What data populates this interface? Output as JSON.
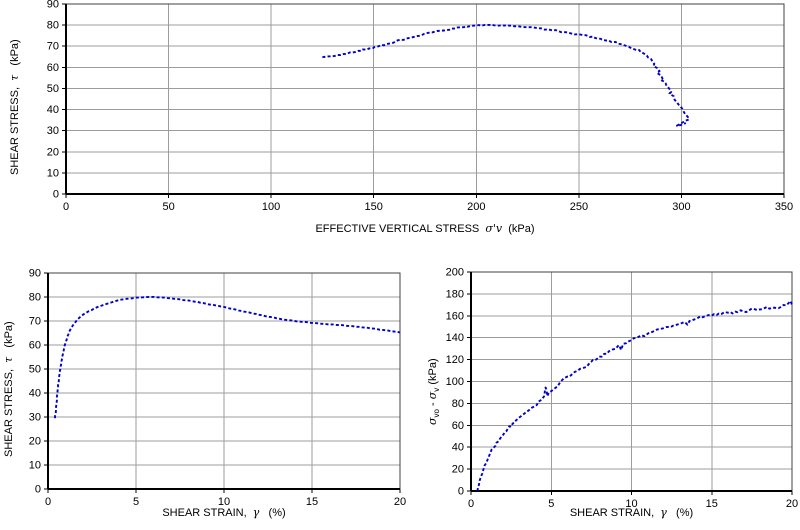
{
  "page": {
    "background": "#ffffff"
  },
  "colors": {
    "curve": "#0000cc",
    "grid": "#9c9c9c",
    "axis": "#000000"
  },
  "chart_data": [
    {
      "id": "stress-path",
      "type": "line",
      "title": "",
      "xlabel_parts": [
        {
          "t": "EFFECTIVE VERTICAL STRESS  "
        },
        {
          "t": "σ'v",
          "sym": true
        },
        {
          "t": "  (kPa)"
        }
      ],
      "ylabel_parts": [
        {
          "t": "SHEAR STRESS,  "
        },
        {
          "t": "τ",
          "sym": true
        },
        {
          "t": "   (kPa)"
        }
      ],
      "xlim": [
        0,
        350
      ],
      "ylim": [
        0,
        90
      ],
      "xticks": [
        0,
        50,
        100,
        150,
        200,
        250,
        300,
        350
      ],
      "yticks": [
        0,
        10,
        20,
        30,
        40,
        50,
        60,
        70,
        80,
        90
      ],
      "grid": true,
      "legend": "none",
      "line_color": "#0000cc",
      "line_style": "dashed",
      "noise": {
        "seed": 11,
        "x": 0.7,
        "y": 0.35
      },
      "points": [
        [
          125,
          64.8
        ],
        [
          128,
          65
        ],
        [
          131,
          65.4
        ],
        [
          134,
          65.9
        ],
        [
          137,
          66.5
        ],
        [
          140,
          67.1
        ],
        [
          144,
          67.9
        ],
        [
          148,
          68.9
        ],
        [
          152,
          69.9
        ],
        [
          156,
          71
        ],
        [
          160,
          72.1
        ],
        [
          164,
          73.1
        ],
        [
          168,
          74.1
        ],
        [
          172,
          75.1
        ],
        [
          176,
          76
        ],
        [
          180,
          76.9
        ],
        [
          184,
          77.6
        ],
        [
          188,
          78.3
        ],
        [
          192,
          78.9
        ],
        [
          196,
          79.4
        ],
        [
          200,
          79.8
        ],
        [
          204,
          80
        ],
        [
          208,
          80
        ],
        [
          212,
          79.9
        ],
        [
          216,
          79.7
        ],
        [
          220,
          79.4
        ],
        [
          225,
          79
        ],
        [
          230,
          78.5
        ],
        [
          235,
          77.9
        ],
        [
          240,
          77.2
        ],
        [
          245,
          76.4
        ],
        [
          250,
          75.5
        ],
        [
          255,
          74.6
        ],
        [
          259,
          73.8
        ],
        [
          263,
          72.9
        ],
        [
          266,
          72.1
        ],
        [
          269,
          71.3
        ],
        [
          272,
          70.4
        ],
        [
          274,
          69.8
        ],
        [
          276,
          69
        ],
        [
          278,
          68.3
        ],
        [
          280,
          67.4
        ],
        [
          282,
          66.4
        ],
        [
          283,
          65.6
        ],
        [
          284,
          64.8
        ],
        [
          285,
          63.8
        ],
        [
          286,
          62.7
        ],
        [
          287,
          61.5
        ],
        [
          286.3,
          60.7
        ],
        [
          288,
          59.6
        ],
        [
          289,
          58.3
        ],
        [
          288.2,
          57.5
        ],
        [
          290,
          56.2
        ],
        [
          291,
          54.8
        ],
        [
          290.2,
          54
        ],
        [
          292,
          52.6
        ],
        [
          293,
          51.2
        ],
        [
          294,
          49.8
        ],
        [
          295,
          48.4
        ],
        [
          294.2,
          47.6
        ],
        [
          296,
          46.2
        ],
        [
          297,
          44.8
        ],
        [
          298,
          43.4
        ],
        [
          299,
          41.9
        ],
        [
          300,
          40.5
        ],
        [
          301,
          39.2
        ],
        [
          302,
          37.9
        ],
        [
          303,
          36.5
        ],
        [
          303.6,
          35.3
        ],
        [
          301.5,
          34.2
        ],
        [
          299.5,
          33.2
        ],
        [
          297.8,
          32.3
        ],
        [
          299.8,
          32.9
        ],
        [
          302.2,
          33.6
        ]
      ]
    },
    {
      "id": "shear-stress-vs-strain",
      "type": "line",
      "title": "",
      "xlabel_parts": [
        {
          "t": "SHEAR STRAIN,  "
        },
        {
          "t": "γ",
          "sym": true
        },
        {
          "t": "   (%)"
        }
      ],
      "ylabel_parts": [
        {
          "t": "SHEAR STRESS,  "
        },
        {
          "t": "τ",
          "sym": true
        },
        {
          "t": "   (kPa)"
        }
      ],
      "xlim": [
        0,
        20
      ],
      "ylim": [
        0,
        90
      ],
      "xticks": [
        0,
        5,
        10,
        15,
        20
      ],
      "yticks": [
        0,
        10,
        20,
        30,
        40,
        50,
        60,
        70,
        80,
        90
      ],
      "grid": true,
      "legend": "none",
      "line_color": "#0000cc",
      "line_style": "dashed",
      "noise": {
        "seed": 5,
        "x": 0.015,
        "y": 0.12
      },
      "points": [
        [
          0.4,
          29.5
        ],
        [
          0.45,
          33
        ],
        [
          0.5,
          37
        ],
        [
          0.55,
          41
        ],
        [
          0.6,
          44.5
        ],
        [
          0.65,
          47.5
        ],
        [
          0.7,
          50
        ],
        [
          0.8,
          54.5
        ],
        [
          0.9,
          58
        ],
        [
          1,
          61
        ],
        [
          1.1,
          63.5
        ],
        [
          1.2,
          65.5
        ],
        [
          1.4,
          68
        ],
        [
          1.6,
          70
        ],
        [
          1.8,
          71.5
        ],
        [
          2,
          72.7
        ],
        [
          2.3,
          74
        ],
        [
          2.6,
          75.1
        ],
        [
          3,
          76.3
        ],
        [
          3.4,
          77.3
        ],
        [
          3.8,
          78.2
        ],
        [
          4.2,
          78.9
        ],
        [
          4.6,
          79.4
        ],
        [
          5,
          79.7
        ],
        [
          5.4,
          79.9
        ],
        [
          5.8,
          80
        ],
        [
          6.2,
          79.9
        ],
        [
          6.6,
          79.7
        ],
        [
          7,
          79.4
        ],
        [
          7.5,
          79
        ],
        [
          8,
          78.5
        ],
        [
          8.5,
          77.9
        ],
        [
          9,
          77.2
        ],
        [
          9.5,
          76.5
        ],
        [
          10,
          75.8
        ],
        [
          10.5,
          75
        ],
        [
          11,
          74.2
        ],
        [
          11.5,
          73.4
        ],
        [
          12,
          72.6
        ],
        [
          12.5,
          71.8
        ],
        [
          13,
          71.1
        ],
        [
          13.5,
          70.5
        ],
        [
          14,
          70
        ],
        [
          14.5,
          69.6
        ],
        [
          15,
          69.2
        ],
        [
          15.5,
          68.9
        ],
        [
          16,
          68.6
        ],
        [
          16.5,
          68.3
        ],
        [
          17,
          68
        ],
        [
          17.5,
          67.6
        ],
        [
          18,
          67.2
        ],
        [
          18.5,
          66.8
        ],
        [
          19,
          66.3
        ],
        [
          19.5,
          65.8
        ],
        [
          20,
          65.2
        ]
      ]
    },
    {
      "id": "vertical-stress-change-vs-strain",
      "type": "line",
      "title": "",
      "xlabel_parts": [
        {
          "t": "SHEAR STRAIN,  "
        },
        {
          "t": "γ",
          "sym": true
        },
        {
          "t": "   (%)"
        }
      ],
      "ylabel_parts": [
        {
          "t": "σ",
          "sym": true
        },
        {
          "t": "vo",
          "sub": true
        },
        {
          "t": " - "
        },
        {
          "t": "σ",
          "sym": true
        },
        {
          "t": "v",
          "sub": true
        },
        {
          "t": " (kPa)"
        }
      ],
      "xlim": [
        0,
        20
      ],
      "ylim": [
        0,
        200
      ],
      "xticks": [
        0,
        5,
        10,
        15,
        20
      ],
      "yticks": [
        0,
        20,
        40,
        60,
        80,
        100,
        120,
        140,
        160,
        180,
        200
      ],
      "grid": true,
      "legend": "none",
      "line_color": "#0000cc",
      "line_style": "dashed",
      "noise": {
        "seed": 23,
        "x": 0.02,
        "y": 1.4
      },
      "points": [
        [
          0.4,
          0
        ],
        [
          0.45,
          3
        ],
        [
          0.5,
          6
        ],
        [
          0.55,
          9
        ],
        [
          0.6,
          12
        ],
        [
          0.7,
          16.5
        ],
        [
          0.8,
          20.5
        ],
        [
          0.9,
          24.5
        ],
        [
          1,
          28
        ],
        [
          1.1,
          31
        ],
        [
          1.2,
          34
        ],
        [
          1.4,
          39
        ],
        [
          1.6,
          43.5
        ],
        [
          1.8,
          47.5
        ],
        [
          2,
          51.5
        ],
        [
          2.2,
          55
        ],
        [
          2.4,
          58.5
        ],
        [
          2.6,
          61.5
        ],
        [
          2.8,
          64.5
        ],
        [
          3,
          67
        ],
        [
          3.2,
          69.5
        ],
        [
          3.4,
          71.5
        ],
        [
          3.6,
          73.5
        ],
        [
          3.8,
          75.5
        ],
        [
          4,
          78
        ],
        [
          4.2,
          81
        ],
        [
          4.4,
          83.5
        ],
        [
          4.55,
          86
        ],
        [
          4.65,
          95
        ],
        [
          4.75,
          86.5
        ],
        [
          4.85,
          89.5
        ],
        [
          5,
          91.5
        ],
        [
          5.2,
          93.5
        ],
        [
          5.4,
          95.5
        ],
        [
          5.6,
          100.5
        ],
        [
          5.8,
          102.5
        ],
        [
          6,
          104
        ],
        [
          6.3,
          106.5
        ],
        [
          6.6,
          109.5
        ],
        [
          7,
          113
        ],
        [
          7.4,
          116.5
        ],
        [
          7.6,
          119.5
        ],
        [
          7.8,
          120
        ],
        [
          8,
          122.5
        ],
        [
          8.3,
          125.5
        ],
        [
          8.6,
          127.5
        ],
        [
          9,
          130.5
        ],
        [
          9.2,
          133
        ],
        [
          9.35,
          129.5
        ],
        [
          9.5,
          134
        ],
        [
          9.8,
          136.5
        ],
        [
          10,
          138.5
        ],
        [
          10.3,
          140.5
        ],
        [
          10.6,
          142.5
        ],
        [
          10.8,
          141
        ],
        [
          11,
          143.5
        ],
        [
          11.3,
          145.5
        ],
        [
          11.6,
          147
        ],
        [
          12,
          148.5
        ],
        [
          12.3,
          150.5
        ],
        [
          12.6,
          151.5
        ],
        [
          13,
          153
        ],
        [
          13.3,
          154.5
        ],
        [
          13.5,
          152.5
        ],
        [
          13.7,
          156
        ],
        [
          14,
          157.5
        ],
        [
          14.3,
          159
        ],
        [
          14.6,
          159.8
        ],
        [
          15,
          160
        ],
        [
          15.3,
          160.8
        ],
        [
          15.6,
          161.8
        ],
        [
          16,
          162.8
        ],
        [
          16.3,
          162.5
        ],
        [
          16.6,
          163.8
        ],
        [
          17,
          164
        ],
        [
          17.3,
          164.8
        ],
        [
          17.6,
          165.8
        ],
        [
          18,
          166
        ],
        [
          18.3,
          166.8
        ],
        [
          18.6,
          167
        ],
        [
          19,
          167.8
        ],
        [
          19.3,
          168.5
        ],
        [
          19.6,
          169.5
        ],
        [
          19.75,
          170.5
        ],
        [
          19.9,
          173.5
        ],
        [
          20,
          170
        ]
      ]
    }
  ]
}
